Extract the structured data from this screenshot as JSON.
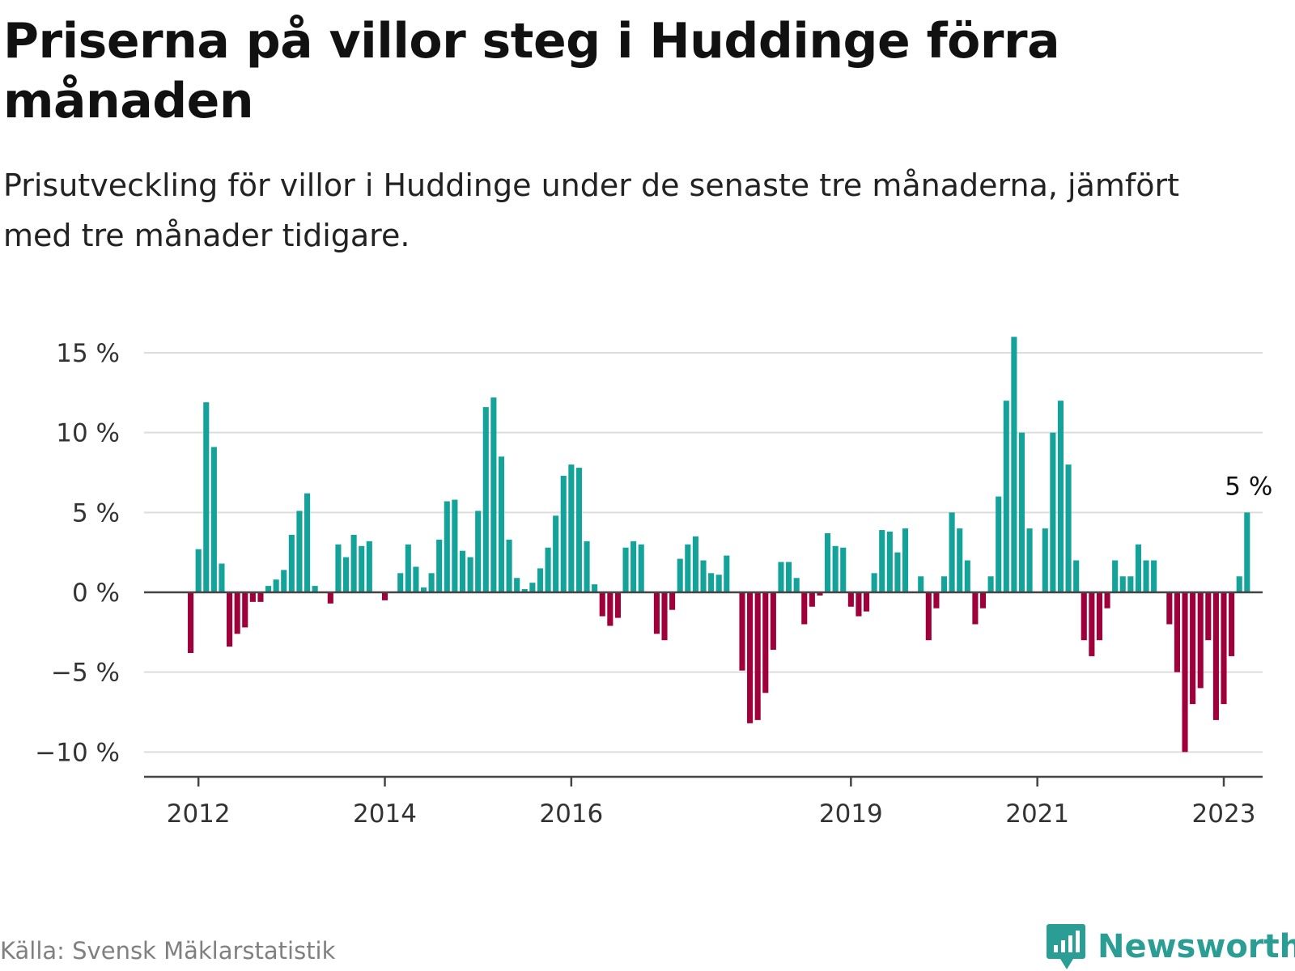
{
  "title": "Priserna på villor steg i Huddinge förra månaden",
  "subtitle": "Prisutveckling för villor i Huddinge under de senaste tre månaderna, jämfört med tre månader tidigare.",
  "source": "Källa: Svensk Mäklarstatistik",
  "brand": "Newsworthy",
  "colors": {
    "positive": "#14a39a",
    "negative": "#a0003a",
    "gridline": "#dddddd",
    "axis": "#444444",
    "brand": "#2a9d94"
  },
  "chart_data": {
    "type": "bar",
    "unit": "%",
    "ylim": [
      -11.5,
      16
    ],
    "yticks": [
      -10,
      -5,
      0,
      5,
      10,
      15
    ],
    "ytick_labels": [
      "−10 %",
      "−5 %",
      "0 %",
      "5 %",
      "10 %",
      "15 %"
    ],
    "x_start": "2011-06",
    "x_end": "2023-06",
    "xticks": [
      {
        "label": "2012",
        "date": "2012-01"
      },
      {
        "label": "2014",
        "date": "2014-01"
      },
      {
        "label": "2016",
        "date": "2016-01"
      },
      {
        "label": "2019",
        "date": "2019-01"
      },
      {
        "label": "2021",
        "date": "2021-01"
      },
      {
        "label": "2023",
        "date": "2023-01"
      }
    ],
    "series_start": "2011-12",
    "values": [
      -3.8,
      2.7,
      11.9,
      9.1,
      1.8,
      -3.4,
      -2.6,
      -2.2,
      -0.6,
      -0.6,
      0.4,
      0.8,
      1.4,
      3.6,
      5.1,
      6.2,
      0.4,
      0,
      -0.7,
      3.0,
      2.2,
      3.6,
      2.9,
      3.2,
      0,
      -0.5,
      0,
      1.2,
      3.0,
      1.6,
      0.3,
      1.2,
      3.3,
      5.7,
      5.8,
      2.6,
      2.2,
      5.1,
      11.6,
      12.2,
      8.5,
      3.3,
      0.9,
      0.2,
      0.6,
      1.5,
      2.8,
      4.8,
      7.3,
      8.0,
      7.8,
      3.2,
      0.5,
      -1.5,
      -2.1,
      -1.6,
      2.8,
      3.2,
      3.0,
      0,
      -2.6,
      -3.0,
      -1.1,
      2.1,
      3.0,
      3.5,
      2.0,
      1.2,
      1.1,
      2.3,
      0,
      -4.9,
      -8.2,
      -8.0,
      -6.3,
      -3.6,
      1.9,
      1.9,
      0.9,
      -2.0,
      -0.9,
      -0.2,
      3.7,
      2.9,
      2.8,
      -0.9,
      -1.5,
      -1.2,
      1.2,
      3.9,
      3.8,
      2.5,
      4.0,
      0,
      1.0,
      -3.0,
      -1.0,
      1.0,
      5.0,
      4.0,
      2.0,
      -2.0,
      -1.0,
      1.0,
      6.0,
      12.0,
      16.0,
      10.0,
      4.0,
      0,
      4.0,
      10.0,
      12.0,
      8.0,
      2.0,
      -3.0,
      -4.0,
      -3.0,
      -1.0,
      2.0,
      1.0,
      1.0,
      3.0,
      2.0,
      2.0,
      0,
      -2.0,
      -5.0,
      -10.0,
      -7.0,
      -6.0,
      -3.0,
      -8.0,
      -7.0,
      -4.0,
      1.0,
      5.0
    ],
    "last_value_label": "5 %",
    "title": "Priserna på villor steg i Huddinge förra månaden",
    "xlabel": "",
    "ylabel": ""
  }
}
